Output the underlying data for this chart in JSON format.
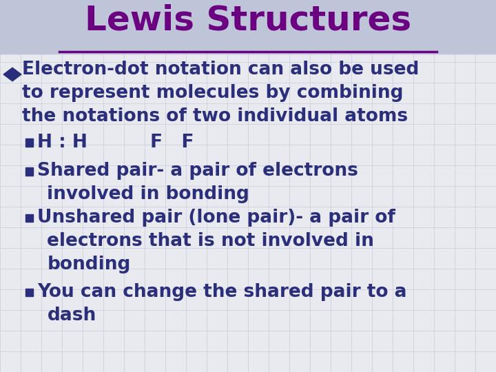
{
  "title": "Lewis Structures",
  "title_color": "#6B0080",
  "title_fontsize": 36,
  "background_color": "#E8EAEF",
  "grid_color": "#C0C4D8",
  "text_color": "#2B2E7A",
  "bullet_color": "#2B2E7A",
  "diamond_color": "#2B2E7A",
  "bullet1_line1": "Electron-dot notation can also be used",
  "bullet1_line2": "to represent molecules by combining",
  "bullet1_line3": "the notations of two individual atoms",
  "sub1": "H : H          F   F",
  "sub2_line1": "Shared pair- a pair of electrons",
  "sub2_line2": "involved in bonding",
  "sub3_line1": "Unshared pair (lone pair)- a pair of",
  "sub3_line2": "electrons that is not involved in",
  "sub3_line3": "bonding",
  "sub4_line1": "You can change the shared pair to a",
  "sub4_line2": "dash",
  "main_fontsize": 19,
  "sub_fontsize": 19,
  "header_bg": "#BFC5D8"
}
